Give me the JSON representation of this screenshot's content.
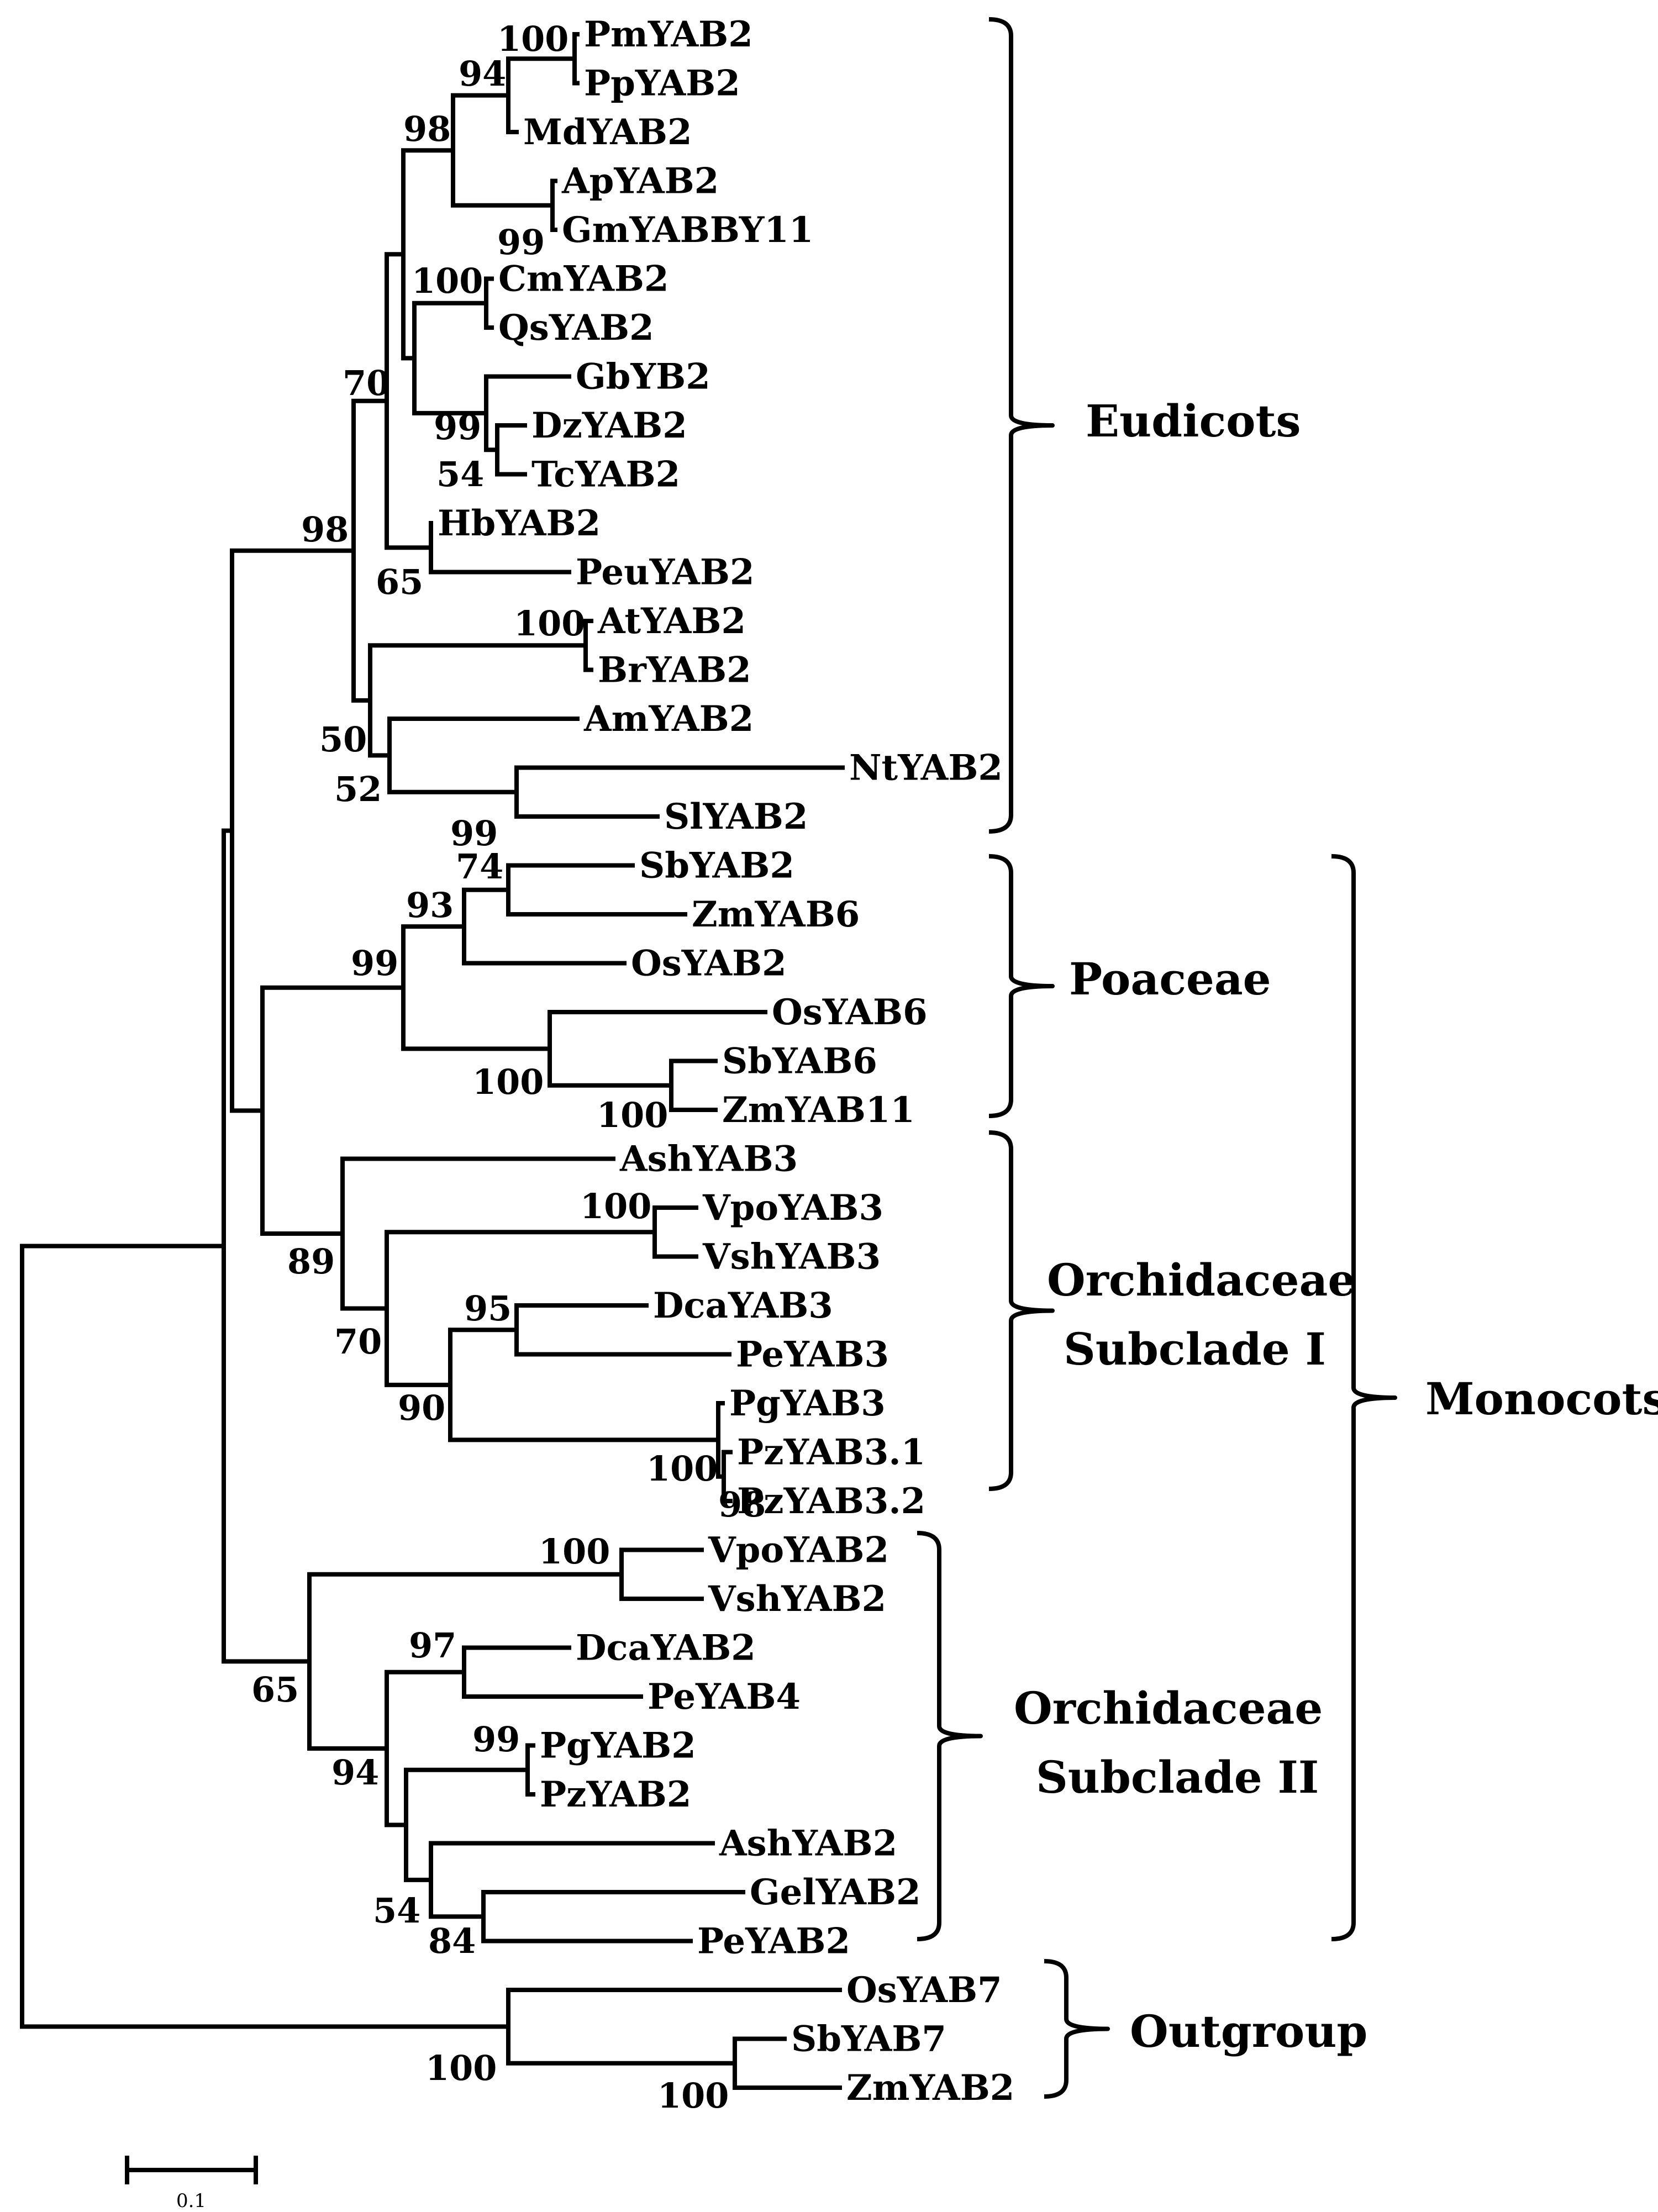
{
  "figure": {
    "type": "phylogenetic-tree",
    "scale_bar_label": "0.1"
  },
  "leaves": [
    "PmYAB2",
    "PpYAB2",
    "MdYAB2",
    "ApYAB2",
    "GmYABBY11",
    "CmYAB2",
    "QsYAB2",
    "GbYB2",
    "DzYAB2",
    "TcYAB2",
    "HbYAB2",
    "PeuYAB2",
    "AtYAB2",
    "BrYAB2",
    "AmYAB2",
    "NtYAB2",
    "SlYAB2",
    "SbYAB2",
    "ZmYAB6",
    "OsYAB2",
    "OsYAB6",
    "SbYAB6",
    "ZmYAB11",
    "AshYAB3",
    "VpoYAB3",
    "VshYAB3",
    "DcaYAB3",
    "PeYAB3",
    "PgYAB3",
    "PzYAB3.1",
    "PzYAB3.2",
    "VpoYAB2",
    "VshYAB2",
    "DcaYAB2",
    "PeYAB4",
    "PgYAB2",
    "PzYAB2",
    "AshYAB2",
    "GelYAB2",
    "PeYAB2",
    "OsYAB7",
    "SbYAB7",
    "ZmYAB2"
  ],
  "bootstrap_values": [
    "100",
    "94",
    "98",
    "99",
    "100",
    "99",
    "54",
    "70",
    "65",
    "100",
    "50",
    "52",
    "99",
    "98",
    "74",
    "93",
    "99",
    "100",
    "100",
    "100",
    "95",
    "90",
    "100",
    "98",
    "70",
    "89",
    "100",
    "97",
    "99",
    "94",
    "54",
    "84",
    "65",
    "100",
    "100"
  ],
  "clades": {
    "eudicots": "Eudicots",
    "poaceae": "Poaceae",
    "orchid_subclade_1": [
      "Orchidaceae",
      "Subclade I"
    ],
    "orchid_subclade_2": [
      "Orchidaceae",
      "Subclade II"
    ],
    "monocots": "Monocots",
    "outgroup": "Outgroup"
  }
}
